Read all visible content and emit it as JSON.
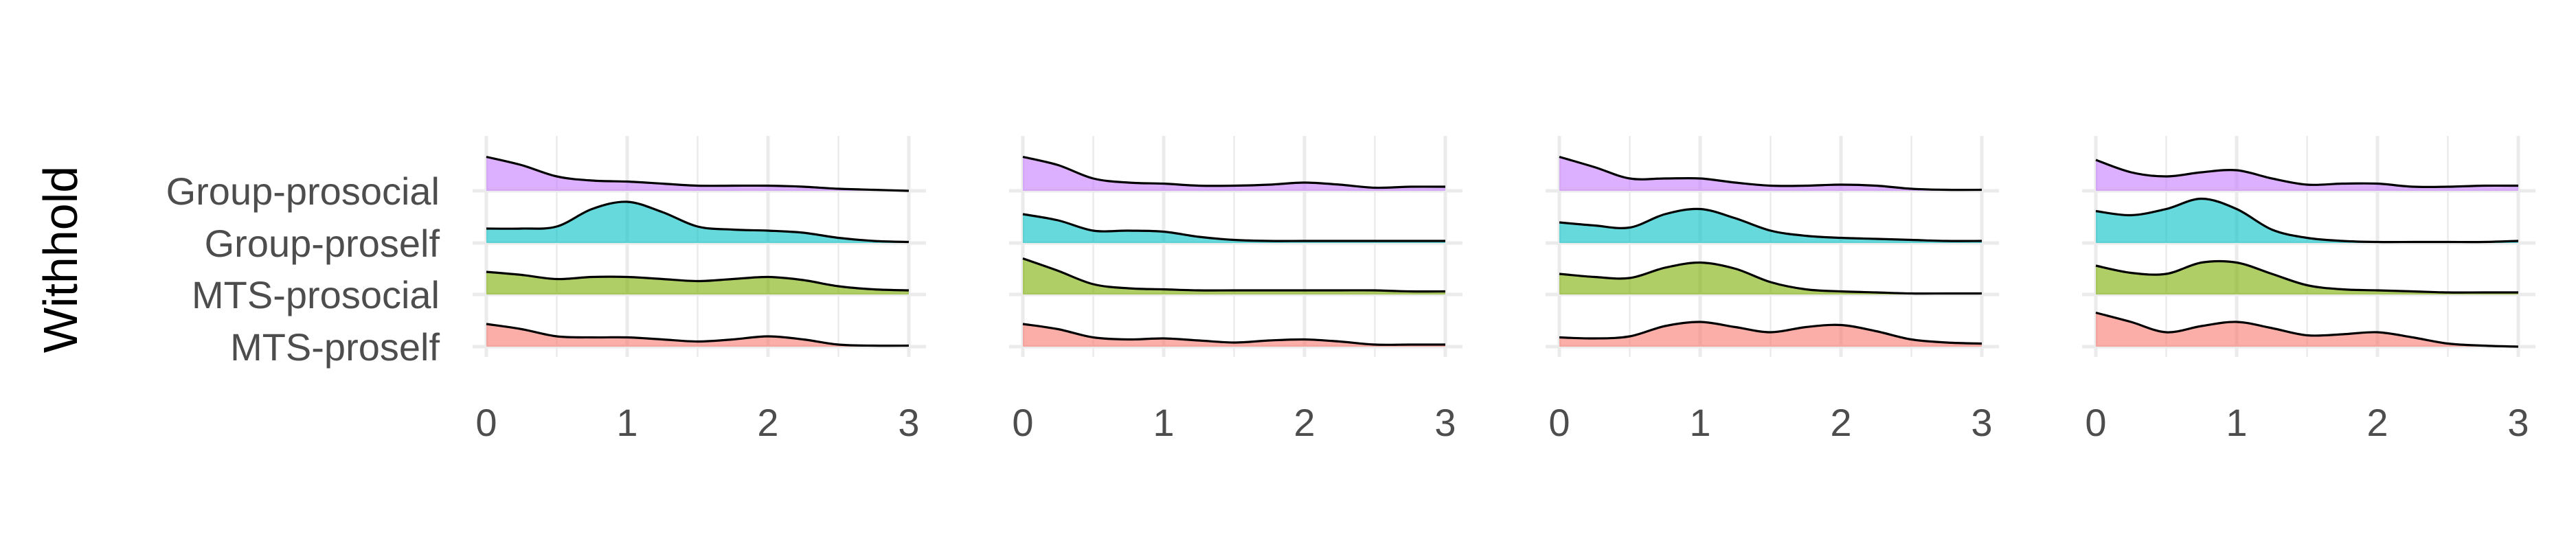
{
  "chart_data": {
    "type": "ridgeline",
    "ylabel": "Withhold",
    "categories": [
      "MTS-proself",
      "MTS-prosocial",
      "Group-proself",
      "Group-prosocial"
    ],
    "colors": {
      "MTS-proself": "#F8766D",
      "MTS-prosocial": "#7CAE00",
      "Group-proself": "#00BFC4",
      "Group-prosocial": "#C77CFF"
    },
    "xlim": [
      0,
      3
    ],
    "x_ticks": [
      "0",
      "1",
      "2",
      "3"
    ],
    "x": [
      0,
      0.25,
      0.5,
      0.75,
      1,
      1.25,
      1.5,
      1.75,
      2,
      2.25,
      2.5,
      2.75,
      3
    ],
    "panels": [
      {
        "series": [
          {
            "category": "MTS-proself",
            "values": [
              0.22,
              0.17,
              0.1,
              0.09,
              0.09,
              0.07,
              0.05,
              0.07,
              0.1,
              0.07,
              0.02,
              0.01,
              0.01
            ]
          },
          {
            "category": "MTS-prosocial",
            "values": [
              0.22,
              0.19,
              0.15,
              0.17,
              0.17,
              0.15,
              0.13,
              0.15,
              0.17,
              0.14,
              0.08,
              0.05,
              0.04
            ]
          },
          {
            "category": "Group-proself",
            "values": [
              0.14,
              0.14,
              0.16,
              0.33,
              0.4,
              0.3,
              0.16,
              0.13,
              0.12,
              0.1,
              0.05,
              0.02,
              0.01
            ]
          },
          {
            "category": "Group-prosocial",
            "values": [
              0.33,
              0.25,
              0.14,
              0.1,
              0.09,
              0.07,
              0.05,
              0.05,
              0.05,
              0.04,
              0.02,
              0.01,
              0.0
            ]
          }
        ]
      },
      {
        "series": [
          {
            "category": "MTS-proself",
            "values": [
              0.22,
              0.17,
              0.09,
              0.07,
              0.08,
              0.06,
              0.04,
              0.06,
              0.07,
              0.05,
              0.02,
              0.02,
              0.02
            ]
          },
          {
            "category": "MTS-prosocial",
            "values": [
              0.35,
              0.23,
              0.1,
              0.06,
              0.05,
              0.04,
              0.04,
              0.04,
              0.04,
              0.04,
              0.04,
              0.03,
              0.03
            ]
          },
          {
            "category": "Group-proself",
            "values": [
              0.28,
              0.22,
              0.12,
              0.12,
              0.11,
              0.06,
              0.03,
              0.02,
              0.02,
              0.02,
              0.02,
              0.02,
              0.02
            ]
          },
          {
            "category": "Group-prosocial",
            "values": [
              0.33,
              0.25,
              0.12,
              0.08,
              0.07,
              0.05,
              0.05,
              0.06,
              0.08,
              0.06,
              0.03,
              0.04,
              0.04
            ]
          }
        ]
      },
      {
        "series": [
          {
            "category": "MTS-proself",
            "values": [
              0.09,
              0.08,
              0.1,
              0.2,
              0.24,
              0.19,
              0.14,
              0.19,
              0.21,
              0.15,
              0.07,
              0.04,
              0.03
            ]
          },
          {
            "category": "MTS-prosocial",
            "values": [
              0.2,
              0.17,
              0.16,
              0.26,
              0.31,
              0.25,
              0.12,
              0.05,
              0.03,
              0.02,
              0.01,
              0.01,
              0.01
            ]
          },
          {
            "category": "Group-proself",
            "values": [
              0.2,
              0.17,
              0.15,
              0.28,
              0.33,
              0.24,
              0.12,
              0.07,
              0.05,
              0.04,
              0.03,
              0.02,
              0.02
            ]
          },
          {
            "category": "Group-prosocial",
            "values": [
              0.33,
              0.23,
              0.12,
              0.12,
              0.12,
              0.08,
              0.05,
              0.05,
              0.06,
              0.05,
              0.02,
              0.01,
              0.01
            ]
          }
        ]
      },
      {
        "series": [
          {
            "category": "MTS-proself",
            "values": [
              0.33,
              0.24,
              0.14,
              0.2,
              0.24,
              0.18,
              0.11,
              0.12,
              0.14,
              0.09,
              0.03,
              0.01,
              0.0
            ]
          },
          {
            "category": "MTS-prosocial",
            "values": [
              0.28,
              0.21,
              0.2,
              0.31,
              0.31,
              0.2,
              0.09,
              0.05,
              0.04,
              0.03,
              0.02,
              0.02,
              0.02
            ]
          },
          {
            "category": "Group-proself",
            "values": [
              0.31,
              0.27,
              0.33,
              0.43,
              0.33,
              0.13,
              0.05,
              0.02,
              0.01,
              0.01,
              0.01,
              0.01,
              0.02
            ]
          },
          {
            "category": "Group-prosocial",
            "values": [
              0.3,
              0.18,
              0.14,
              0.18,
              0.2,
              0.12,
              0.06,
              0.07,
              0.07,
              0.04,
              0.04,
              0.05,
              0.05
            ]
          }
        ]
      }
    ]
  }
}
